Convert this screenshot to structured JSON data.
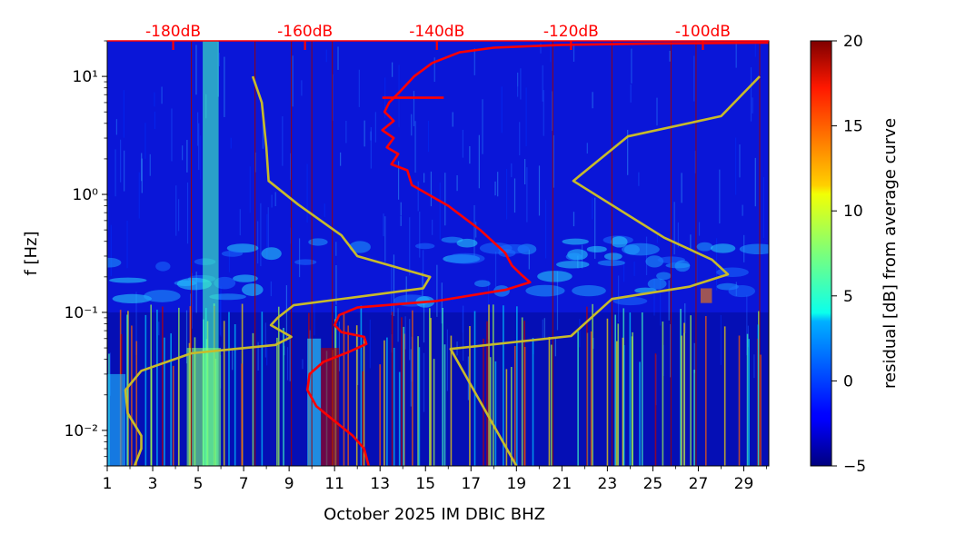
{
  "chart_data": {
    "type": "heatmap",
    "xlabel": "October 2025 IM DBIC  BHZ",
    "ylabel": "f [Hz]",
    "xlim": [
      1,
      30.1
    ],
    "ylim": [
      0.005,
      20
    ],
    "y_scale": "log",
    "x_ticks": [
      1,
      3,
      5,
      7,
      9,
      11,
      13,
      15,
      17,
      19,
      21,
      23,
      25,
      27,
      29
    ],
    "x_tick_labels": [
      "1",
      "3",
      "5",
      "7",
      "9",
      "11",
      "13",
      "15",
      "17",
      "19",
      "21",
      "23",
      "25",
      "27",
      "29"
    ],
    "y_ticks": [
      0.01,
      0.1,
      1,
      10
    ],
    "y_tick_labels": [
      "10⁻²",
      "10⁻¹",
      "10⁰",
      "10¹"
    ],
    "top_axis": {
      "color": "#ff0000",
      "ticks_day": [
        3.9,
        9.7,
        15.5,
        21.4,
        27.2
      ],
      "labels": [
        "-180dB",
        "-160dB",
        "-140dB",
        "-120dB",
        "-100dB"
      ]
    },
    "colorbar": {
      "label": "residual [dB] from average curve",
      "colormap": "jet",
      "range": [
        -5,
        20
      ],
      "ticks": [
        -5,
        0,
        5,
        10,
        15,
        20
      ],
      "tick_labels": [
        "−5",
        "0",
        "5",
        "10",
        "15",
        "20"
      ]
    },
    "series": [
      {
        "color": "#ff0000",
        "points": [
          [
            12.5,
            0.005
          ],
          [
            12.3,
            0.007
          ],
          [
            11.8,
            0.009
          ],
          [
            11.0,
            0.012
          ],
          [
            10.2,
            0.016
          ],
          [
            9.8,
            0.022
          ],
          [
            9.9,
            0.03
          ],
          [
            10.5,
            0.038
          ],
          [
            11.6,
            0.046
          ],
          [
            12.4,
            0.054
          ],
          [
            12.3,
            0.062
          ],
          [
            11.3,
            0.068
          ],
          [
            11.0,
            0.078
          ],
          [
            11.2,
            0.095
          ],
          [
            12.0,
            0.11
          ],
          [
            15.5,
            0.125
          ],
          [
            18.5,
            0.155
          ],
          [
            19.6,
            0.18
          ],
          [
            19.2,
            0.21
          ],
          [
            18.8,
            0.25
          ],
          [
            18.5,
            0.32
          ],
          [
            17.4,
            0.5
          ],
          [
            16.0,
            0.8
          ],
          [
            14.4,
            1.2
          ],
          [
            14.2,
            1.6
          ],
          [
            13.5,
            1.8
          ],
          [
            13.8,
            2.2
          ],
          [
            13.3,
            2.5
          ],
          [
            13.6,
            3.0
          ],
          [
            13.1,
            3.5
          ],
          [
            13.6,
            4.2
          ],
          [
            13.2,
            5.0
          ],
          [
            13.4,
            6.0
          ],
          [
            13.9,
            7.5
          ],
          [
            14.5,
            10
          ],
          [
            15.3,
            13
          ],
          [
            16.5,
            16
          ],
          [
            18.0,
            17.5
          ],
          [
            21.0,
            18.5
          ],
          [
            25.0,
            19
          ],
          [
            30.1,
            19.3
          ]
        ]
      },
      {
        "color": "#ff0000",
        "points": [
          [
            13.1,
            6.6
          ],
          [
            15.8,
            6.6
          ]
        ]
      },
      {
        "color": "#c8bb2a",
        "points": [
          [
            2.2,
            0.005
          ],
          [
            2.5,
            0.007
          ],
          [
            2.5,
            0.009
          ],
          [
            1.9,
            0.014
          ],
          [
            1.8,
            0.022
          ],
          [
            2.5,
            0.032
          ],
          [
            4.7,
            0.045
          ],
          [
            8.4,
            0.053
          ],
          [
            9.1,
            0.062
          ],
          [
            8.2,
            0.078
          ],
          [
            8.5,
            0.09
          ],
          [
            9.2,
            0.115
          ],
          [
            14.9,
            0.16
          ],
          [
            15.2,
            0.2
          ],
          [
            12.0,
            0.3
          ],
          [
            11.3,
            0.45
          ],
          [
            9.4,
            0.82
          ],
          [
            8.1,
            1.3
          ],
          [
            8.0,
            2.5
          ],
          [
            7.8,
            6.0
          ],
          [
            7.4,
            10
          ]
        ]
      },
      {
        "color": "#c8bb2a",
        "points": [
          [
            19.0,
            0.005
          ],
          [
            16.1,
            0.049
          ],
          [
            21.4,
            0.063
          ],
          [
            23.2,
            0.13
          ],
          [
            26.6,
            0.165
          ],
          [
            28.3,
            0.21
          ],
          [
            27.6,
            0.28
          ],
          [
            25.5,
            0.43
          ],
          [
            21.5,
            1.3
          ],
          [
            23.9,
            3.1
          ],
          [
            28.0,
            4.6
          ],
          [
            29.7,
            10
          ]
        ]
      }
    ]
  }
}
